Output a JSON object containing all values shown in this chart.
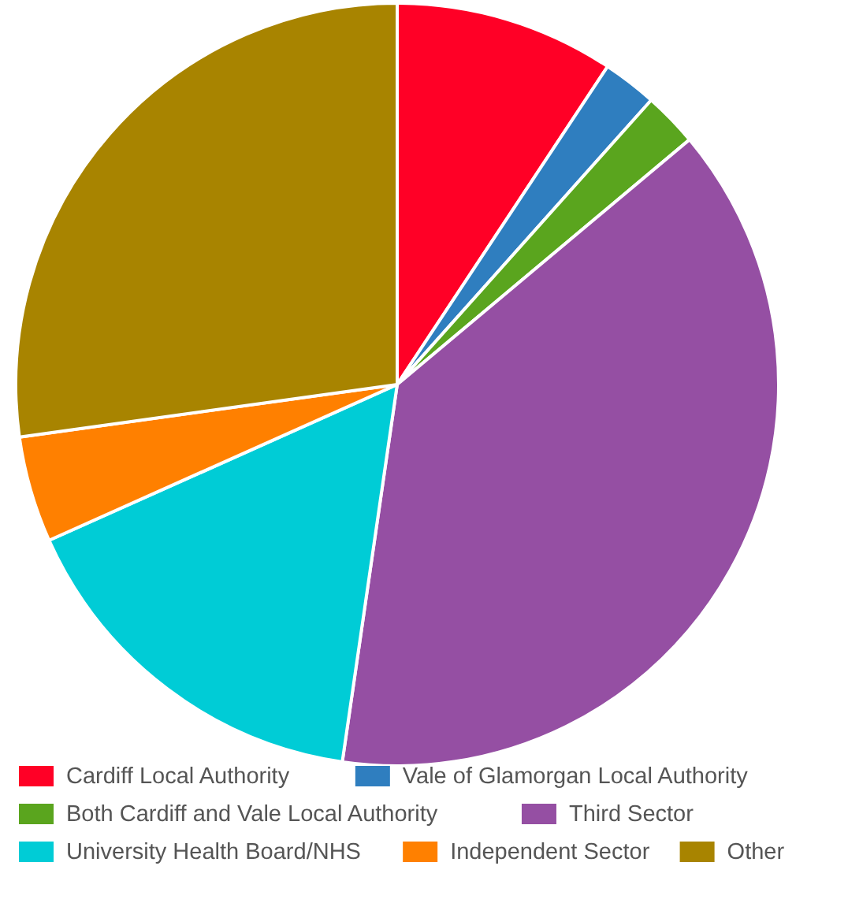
{
  "chart_data": {
    "type": "pie",
    "categories": [
      "Cardiff Local Authority",
      "Vale of Glamorgan Local Authority",
      "Both Cardiff and Vale Local Authority",
      "Third Sector",
      "University Health Board/NHS",
      "Independent Sector",
      "Other"
    ],
    "values": [
      9.3,
      2.3,
      2.3,
      38.4,
      16,
      4.5,
      27.2
    ],
    "colors": [
      "#ff0026",
      "#2f7ebf",
      "#5aa51e",
      "#954fa3",
      "#00ccd6",
      "#ff8000",
      "#a88400"
    ],
    "legend": "bottom"
  }
}
